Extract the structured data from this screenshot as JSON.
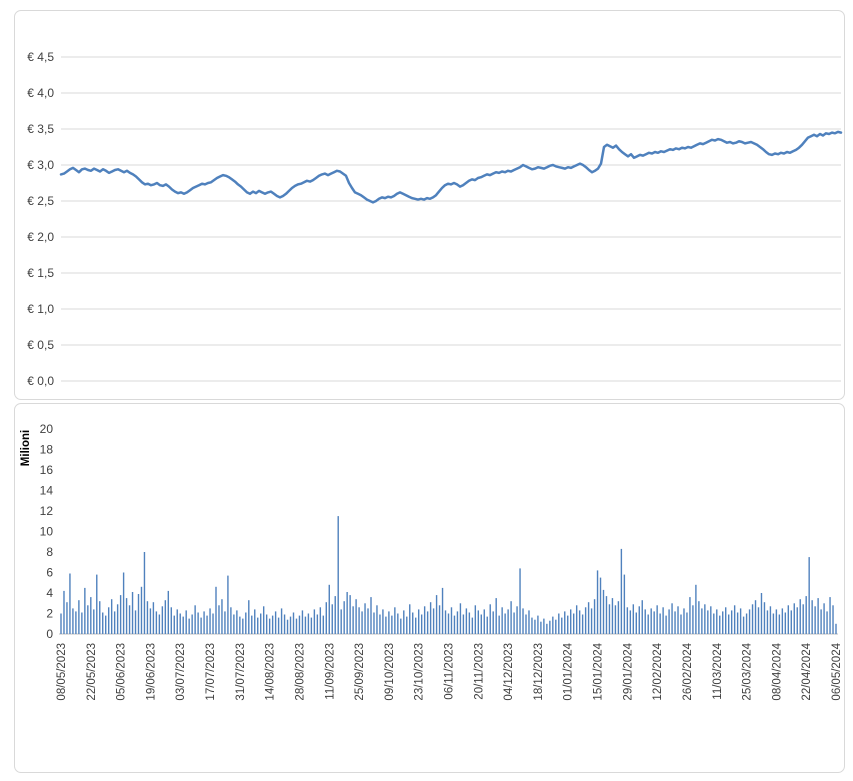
{
  "colors": {
    "accent": "#4F81BD",
    "grid": "#D9D9D9",
    "axis_text": "#404040",
    "axis_line": "#BFBFBF",
    "panel_border": "#D9D9D9"
  },
  "chart_data": [
    {
      "type": "line",
      "title": "",
      "xlabel": "",
      "ylabel": "",
      "legend": false,
      "grid": true,
      "line_color": "#4F81BD",
      "ylim": [
        0,
        4.5
      ],
      "y_tick_values": [
        0,
        0.5,
        1.0,
        1.5,
        2.0,
        2.5,
        3.0,
        3.5,
        4.0,
        4.5
      ],
      "y_tick_labels": [
        "€ 0,0",
        "€ 0,5",
        "€ 1,0",
        "€ 1,5",
        "€ 2,0",
        "€ 2,5",
        "€ 3,0",
        "€ 3,5",
        "€ 4,0",
        "€ 4,5"
      ],
      "x_tick_labels": [
        "08/05/2023",
        "22/05/2023",
        "05/06/2023",
        "19/06/2023",
        "03/07/2023",
        "17/07/2023",
        "31/07/2023",
        "14/08/2023",
        "28/08/2023",
        "11/09/2023",
        "25/09/2023",
        "09/10/2023",
        "23/10/2023",
        "06/11/2023",
        "20/11/2023",
        "04/12/2023",
        "18/12/2023",
        "01/01/2024",
        "15/01/2024",
        "29/01/2024",
        "12/02/2024",
        "26/02/2024",
        "11/03/2024",
        "25/03/2024",
        "08/04/2024",
        "22/04/2024",
        "06/05/2024"
      ],
      "x_tick_interval": 10,
      "values": [
        2.87,
        2.88,
        2.91,
        2.94,
        2.96,
        2.93,
        2.9,
        2.94,
        2.95,
        2.93,
        2.92,
        2.95,
        2.93,
        2.91,
        2.94,
        2.92,
        2.89,
        2.91,
        2.93,
        2.94,
        2.92,
        2.9,
        2.92,
        2.89,
        2.87,
        2.84,
        2.8,
        2.76,
        2.73,
        2.74,
        2.72,
        2.73,
        2.75,
        2.72,
        2.71,
        2.73,
        2.7,
        2.66,
        2.63,
        2.61,
        2.62,
        2.6,
        2.62,
        2.65,
        2.68,
        2.7,
        2.72,
        2.74,
        2.73,
        2.75,
        2.76,
        2.79,
        2.82,
        2.84,
        2.86,
        2.85,
        2.83,
        2.8,
        2.77,
        2.73,
        2.7,
        2.66,
        2.62,
        2.6,
        2.63,
        2.61,
        2.64,
        2.62,
        2.6,
        2.62,
        2.63,
        2.6,
        2.57,
        2.55,
        2.57,
        2.6,
        2.64,
        2.68,
        2.71,
        2.73,
        2.74,
        2.76,
        2.78,
        2.77,
        2.79,
        2.82,
        2.85,
        2.87,
        2.88,
        2.86,
        2.88,
        2.9,
        2.92,
        2.91,
        2.88,
        2.85,
        2.75,
        2.68,
        2.62,
        2.6,
        2.58,
        2.55,
        2.52,
        2.5,
        2.48,
        2.5,
        2.53,
        2.55,
        2.54,
        2.56,
        2.55,
        2.57,
        2.6,
        2.62,
        2.6,
        2.58,
        2.56,
        2.54,
        2.53,
        2.52,
        2.53,
        2.52,
        2.54,
        2.53,
        2.55,
        2.58,
        2.63,
        2.68,
        2.72,
        2.74,
        2.73,
        2.75,
        2.73,
        2.7,
        2.72,
        2.75,
        2.78,
        2.8,
        2.79,
        2.82,
        2.83,
        2.85,
        2.87,
        2.86,
        2.88,
        2.9,
        2.89,
        2.91,
        2.9,
        2.92,
        2.91,
        2.93,
        2.95,
        2.97,
        3.0,
        2.98,
        2.96,
        2.94,
        2.95,
        2.97,
        2.96,
        2.95,
        2.97,
        2.99,
        3.0,
        2.98,
        2.97,
        2.96,
        2.95,
        2.97,
        2.96,
        2.98,
        3.0,
        3.02,
        3.0,
        2.97,
        2.93,
        2.9,
        2.92,
        2.95,
        3.02,
        3.25,
        3.28,
        3.26,
        3.24,
        3.27,
        3.22,
        3.18,
        3.15,
        3.12,
        3.15,
        3.1,
        3.12,
        3.14,
        3.13,
        3.15,
        3.17,
        3.16,
        3.18,
        3.17,
        3.19,
        3.18,
        3.2,
        3.22,
        3.21,
        3.23,
        3.22,
        3.24,
        3.23,
        3.25,
        3.24,
        3.26,
        3.28,
        3.3,
        3.29,
        3.31,
        3.33,
        3.35,
        3.34,
        3.36,
        3.35,
        3.33,
        3.31,
        3.32,
        3.3,
        3.31,
        3.33,
        3.32,
        3.3,
        3.31,
        3.32,
        3.3,
        3.28,
        3.25,
        3.22,
        3.18,
        3.15,
        3.14,
        3.16,
        3.15,
        3.17,
        3.16,
        3.18,
        3.17,
        3.19,
        3.21,
        3.24,
        3.28,
        3.33,
        3.38,
        3.4,
        3.42,
        3.4,
        3.43,
        3.41,
        3.44,
        3.43,
        3.45,
        3.44,
        3.46,
        3.45
      ]
    },
    {
      "type": "bar",
      "title": "",
      "xlabel": "",
      "ylabel": "Milioni",
      "legend": false,
      "grid": false,
      "bar_color": "#4F81BD",
      "ylim": [
        0,
        20
      ],
      "y_tick_values": [
        0,
        2,
        4,
        6,
        8,
        10,
        12,
        14,
        16,
        18,
        20
      ],
      "y_tick_labels": [
        "0",
        "2",
        "4",
        "6",
        "8",
        "10",
        "12",
        "14",
        "16",
        "18",
        "20"
      ],
      "x_tick_labels": [
        "08/05/2023",
        "22/05/2023",
        "05/06/2023",
        "19/06/2023",
        "03/07/2023",
        "17/07/2023",
        "31/07/2023",
        "14/08/2023",
        "28/08/2023",
        "11/09/2023",
        "25/09/2023",
        "09/10/2023",
        "23/10/2023",
        "06/11/2023",
        "20/11/2023",
        "04/12/2023",
        "18/12/2023",
        "01/01/2024",
        "15/01/2024",
        "29/01/2024",
        "12/02/2024",
        "26/02/2024",
        "11/03/2024",
        "25/03/2024",
        "08/04/2024",
        "22/04/2024",
        "06/05/2024"
      ],
      "x_tick_interval": 10,
      "values": [
        2.0,
        4.2,
        3.1,
        5.9,
        2.5,
        2.2,
        3.3,
        2.1,
        4.5,
        2.8,
        3.6,
        2.4,
        5.8,
        3.2,
        2.1,
        1.8,
        2.6,
        3.4,
        2.2,
        2.9,
        3.8,
        6.0,
        3.5,
        2.8,
        4.1,
        2.3,
        3.9,
        4.6,
        8.0,
        3.2,
        2.5,
        3.1,
        2.2,
        1.9,
        2.7,
        3.3,
        4.2,
        2.6,
        1.8,
        2.4,
        2.0,
        1.7,
        2.3,
        1.5,
        1.9,
        2.8,
        2.1,
        1.6,
        2.2,
        1.8,
        2.5,
        2.0,
        4.6,
        2.8,
        3.4,
        2.2,
        5.7,
        2.6,
        1.9,
        2.3,
        1.7,
        1.5,
        2.1,
        3.3,
        1.8,
        2.4,
        1.6,
        2.0,
        2.7,
        1.9,
        1.5,
        1.8,
        2.2,
        1.6,
        2.5,
        1.9,
        1.4,
        1.7,
        2.1,
        1.5,
        1.8,
        2.3,
        1.7,
        2.0,
        1.6,
        2.4,
        1.9,
        2.6,
        1.8,
        3.1,
        4.8,
        2.9,
        3.7,
        11.5,
        2.4,
        3.2,
        4.1,
        3.8,
        2.7,
        3.4,
        2.6,
        2.2,
        3.0,
        2.5,
        3.6,
        2.1,
        2.8,
        1.9,
        2.4,
        1.7,
        2.2,
        1.8,
        2.6,
        2.0,
        1.5,
        2.3,
        1.7,
        2.9,
        2.1,
        1.6,
        2.4,
        1.9,
        2.7,
        2.2,
        3.1,
        2.5,
        3.8,
        2.8,
        4.5,
        2.3,
        2.0,
        2.6,
        1.8,
        2.2,
        3.0,
        1.9,
        2.5,
        2.1,
        1.6,
        2.8,
        2.3,
        1.9,
        2.4,
        1.7,
        2.9,
        2.2,
        3.5,
        1.8,
        2.6,
        2.0,
        2.4,
        3.2,
        2.1,
        2.7,
        6.4,
        2.5,
        1.9,
        2.3,
        1.6,
        1.4,
        1.8,
        1.2,
        1.5,
        1.0,
        1.3,
        1.7,
        1.4,
        2.0,
        1.6,
        2.2,
        1.8,
        2.4,
        2.0,
        2.8,
        2.3,
        1.9,
        2.6,
        3.1,
        2.5,
        3.4,
        6.2,
        5.5,
        4.3,
        3.7,
        2.9,
        3.5,
        2.8,
        3.2,
        8.3,
        5.8,
        2.6,
        2.3,
        2.9,
        2.1,
        2.7,
        3.3,
        2.4,
        1.9,
        2.5,
        2.2,
        2.8,
        2.0,
        2.6,
        1.8,
        2.4,
        3.0,
        2.2,
        2.7,
        1.9,
        2.5,
        2.1,
        3.6,
        2.8,
        4.8,
        3.2,
        2.5,
        2.9,
        2.3,
        2.7,
        2.0,
        2.4,
        1.8,
        2.2,
        2.6,
        1.9,
        2.3,
        2.8,
        2.1,
        2.5,
        1.7,
        2.0,
        2.4,
        2.9,
        3.3,
        2.6,
        4.0,
        3.1,
        2.3,
        2.7,
        2.0,
        2.4,
        1.9,
        2.5,
        2.1,
        2.8,
        2.3,
        3.0,
        2.6,
        3.4,
        2.9,
        3.7,
        7.5,
        3.3,
        2.7,
        3.5,
        2.4,
        3.0,
        2.2,
        3.6,
        2.8,
        1.0
      ]
    }
  ]
}
